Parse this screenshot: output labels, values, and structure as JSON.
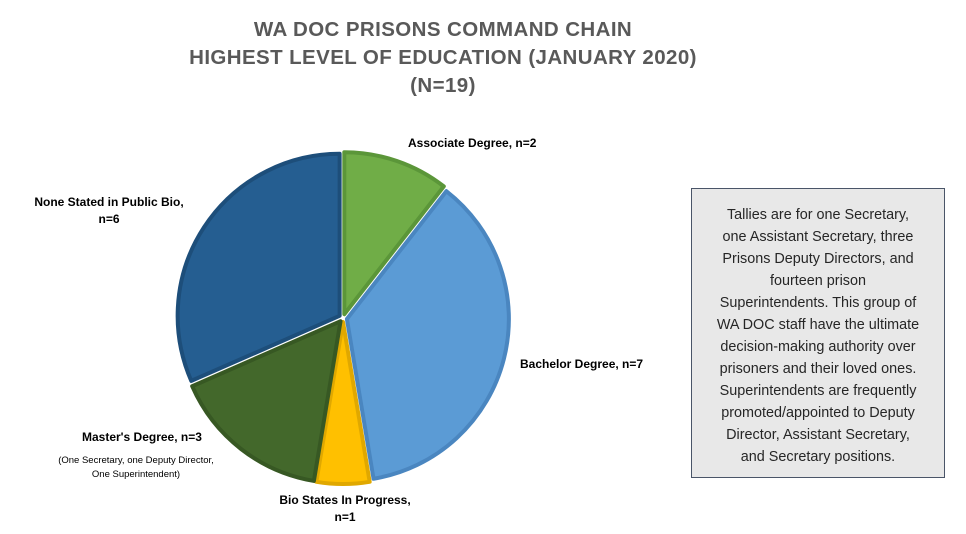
{
  "title_lines": [
    "WA DOC PRISONS COMMAND CHAIN",
    "HIGHEST LEVEL OF EDUCATION (JANUARY 2020)",
    "(N=19)"
  ],
  "chart_data": {
    "type": "pie",
    "title": "WA DOC PRISONS COMMAND CHAIN HIGHEST LEVEL OF EDUCATION (JANUARY 2020) (N=19)",
    "total": 19,
    "slices": [
      {
        "label": "Associate Degree, n=2",
        "value": 2,
        "color": "#70ad47",
        "edge": "#5b9639"
      },
      {
        "label": "Bachelor Degree, n=7",
        "value": 7,
        "color": "#5b9bd5",
        "edge": "#4a86c0"
      },
      {
        "label": "Bio States In Progress, n=1",
        "value": 1,
        "color": "#ffc000",
        "edge": "#e0a800"
      },
      {
        "label": "Master's Degree, n=3",
        "value": 3,
        "color": "#43682b",
        "edge": "#375823"
      },
      {
        "label": "None Stated in Public Bio, n=6",
        "value": 6,
        "color": "#255e91",
        "edge": "#1d4e7a"
      }
    ],
    "start": "12 o'clock",
    "direction": "clockwise",
    "exploded": true
  },
  "labels": {
    "associate": "Associate Degree, n=2",
    "bachelor": "Bachelor Degree, n=7",
    "bio_line1": "Bio States In Progress,",
    "bio_line2": "n=1",
    "masters": "Master's Degree, n=3",
    "masters_note_line1": "(One Secretary, one Deputy Director,",
    "masters_note_line2": "One Superintendent)",
    "none_line1": "None Stated in Public Bio,",
    "none_line2": "n=6"
  },
  "note_box": {
    "lines": [
      "Tallies are for one Secretary,",
      "one Assistant Secretary, three",
      "Prisons Deputy Directors, and",
      "fourteen prison",
      "Superintendents. This group of",
      "WA DOC staff have the ultimate",
      "decision-making authority over",
      "prisoners and their loved ones.",
      "Superintendents are frequently",
      "promoted/appointed to Deputy",
      "Director, Assistant Secretary,",
      "and Secretary positions."
    ]
  }
}
